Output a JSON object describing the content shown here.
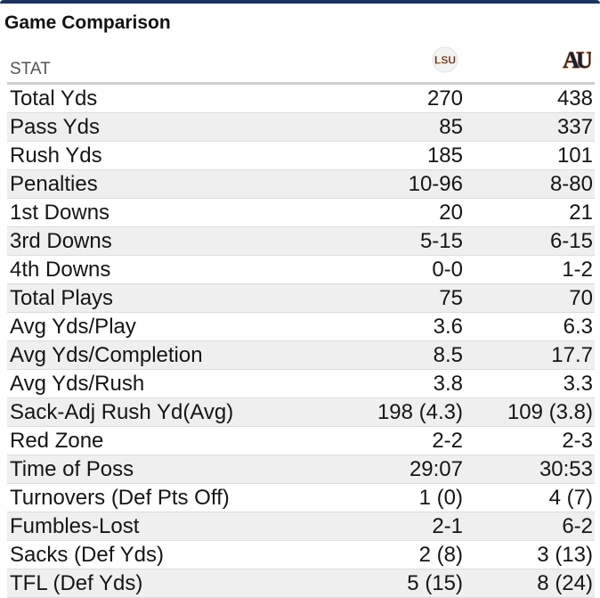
{
  "widget": {
    "title": "Game Comparison",
    "stat_header": "STAT"
  },
  "teams": [
    {
      "logo_text": "LSU",
      "icon": "lsu-logo",
      "color": "#461d7c",
      "accent": "#fdd023"
    },
    {
      "logo_text": "AU",
      "icon": "auburn-logo",
      "color": "#0c2340",
      "accent": "#e87722"
    }
  ],
  "colors": {
    "header_border": "#1d3461",
    "stripe": "#efefef"
  },
  "rows": [
    {
      "stat": "Total Yds",
      "a": "270",
      "b": "438"
    },
    {
      "stat": "Pass Yds",
      "a": "85",
      "b": "337"
    },
    {
      "stat": "Rush Yds",
      "a": "185",
      "b": "101"
    },
    {
      "stat": "Penalties",
      "a": "10-96",
      "b": "8-80"
    },
    {
      "stat": "1st Downs",
      "a": "20",
      "b": "21"
    },
    {
      "stat": "3rd Downs",
      "a": "5-15",
      "b": "6-15"
    },
    {
      "stat": "4th Downs",
      "a": "0-0",
      "b": "1-2"
    },
    {
      "stat": "Total Plays",
      "a": "75",
      "b": "70"
    },
    {
      "stat": "Avg Yds/Play",
      "a": "3.6",
      "b": "6.3"
    },
    {
      "stat": "Avg Yds/Completion",
      "a": "8.5",
      "b": "17.7"
    },
    {
      "stat": "Avg Yds/Rush",
      "a": "3.8",
      "b": "3.3"
    },
    {
      "stat": "Sack-Adj Rush Yd(Avg)",
      "a": "198 (4.3)",
      "b": "109 (3.8)"
    },
    {
      "stat": "Red Zone",
      "a": "2-2",
      "b": "2-3"
    },
    {
      "stat": "Time of Poss",
      "a": "29:07",
      "b": "30:53"
    },
    {
      "stat": "Turnovers (Def Pts Off)",
      "a": "1 (0)",
      "b": "4 (7)"
    },
    {
      "stat": "Fumbles-Lost",
      "a": "2-1",
      "b": "6-2"
    },
    {
      "stat": "Sacks (Def Yds)",
      "a": "2 (8)",
      "b": "3 (13)"
    },
    {
      "stat": "TFL (Def Yds)",
      "a": "5 (15)",
      "b": "8 (24)"
    }
  ]
}
